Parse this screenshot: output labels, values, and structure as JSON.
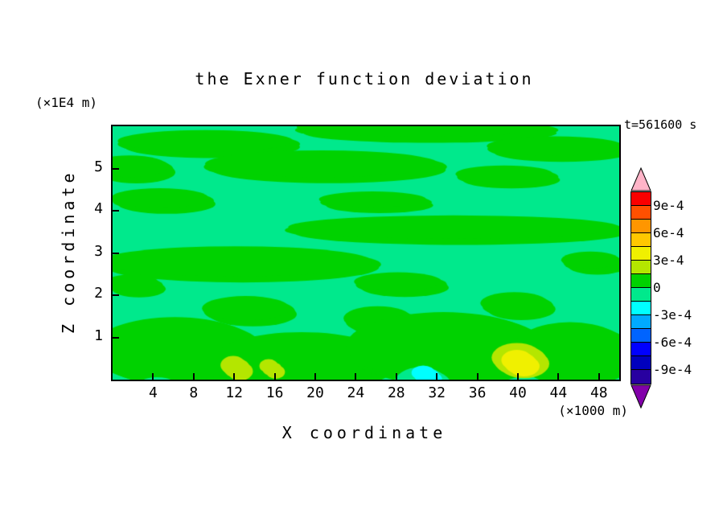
{
  "title": "the Exner function deviation",
  "annotations": {
    "time_label": "t=561600 s",
    "y_unit_label": "(×1E4 m)",
    "x_unit_label": "(×1000 m)"
  },
  "axes": {
    "x_label": "X coordinate",
    "y_label": "Z coordinate"
  },
  "chart_data": {
    "type": "heatmap",
    "title": "the Exner function deviation",
    "xlabel": "X coordinate",
    "ylabel": "Z coordinate",
    "x_unit": "×1000 m",
    "y_unit": "×1E4 m",
    "time_annotation": "t=561600 s",
    "xlim": [
      0,
      50
    ],
    "ylim": [
      0,
      6
    ],
    "x_ticks": [
      4,
      8,
      12,
      16,
      20,
      24,
      28,
      32,
      36,
      40,
      44,
      48
    ],
    "y_ticks": [
      1,
      2,
      3,
      4,
      5
    ],
    "grid": false,
    "legend_position": "right-colorbar",
    "contour_interval": 0.00015,
    "colorbar": {
      "labels_top_to_bottom": [
        "9e-4",
        "6e-4",
        "3e-4",
        "0",
        "-3e-4",
        "-6e-4",
        "-9e-4"
      ],
      "segment_colors_top_to_bottom": [
        "#fa0000",
        "#ff5000",
        "#ff9600",
        "#ffc800",
        "#f0f000",
        "#b4e600",
        "#00d200",
        "#00e98c",
        "#00ffff",
        "#00aaff",
        "#0064ff",
        "#0000ff",
        "#0000be",
        "#2800a0"
      ],
      "over_arrow_color": "#ffb4c8",
      "under_arrow_color": "#8200aa"
    },
    "levels": {
      "background": {
        "range": "-1.5e-4 to 0",
        "color": "#00e98c"
      },
      "green": {
        "range": "0 to 1.5e-4",
        "color": "#00d200"
      },
      "cyan": {
        "range": "-3e-4 to -1.5e-4",
        "color": "#00ffff"
      },
      "yellow_green": {
        "range": "1.5e-4 to 3e-4",
        "color": "#b4e600"
      },
      "yellow": {
        "range": "3e-4 to 4.5e-4",
        "color": "#f0f000"
      }
    },
    "background_level": "background",
    "field_regions": [
      {
        "level": "green",
        "cx": 0.19,
        "cy": 0.07,
        "rx": 0.18,
        "ry": 0.045
      },
      {
        "level": "green",
        "cx": 0.62,
        "cy": 0.015,
        "rx": 0.26,
        "ry": 0.04
      },
      {
        "level": "green",
        "cx": 0.88,
        "cy": 0.09,
        "rx": 0.14,
        "ry": 0.04
      },
      {
        "level": "green",
        "cx": 0.42,
        "cy": 0.16,
        "rx": 0.24,
        "ry": 0.055
      },
      {
        "level": "green",
        "cx": 0.04,
        "cy": 0.17,
        "rx": 0.08,
        "ry": 0.045
      },
      {
        "level": "green",
        "cx": 0.78,
        "cy": 0.2,
        "rx": 0.1,
        "ry": 0.035
      },
      {
        "level": "green",
        "cx": 0.1,
        "cy": 0.295,
        "rx": 0.1,
        "ry": 0.04
      },
      {
        "level": "green",
        "cx": 0.52,
        "cy": 0.3,
        "rx": 0.11,
        "ry": 0.032
      },
      {
        "level": "green",
        "cx": 0.68,
        "cy": 0.41,
        "rx": 0.34,
        "ry": 0.048
      },
      {
        "level": "green",
        "cx": 0.25,
        "cy": 0.545,
        "rx": 0.28,
        "ry": 0.062
      },
      {
        "level": "green",
        "cx": 0.57,
        "cy": 0.625,
        "rx": 0.09,
        "ry": 0.038
      },
      {
        "level": "green",
        "cx": 0.045,
        "cy": 0.63,
        "rx": 0.055,
        "ry": 0.035
      },
      {
        "level": "green",
        "cx": 0.95,
        "cy": 0.54,
        "rx": 0.06,
        "ry": 0.035
      },
      {
        "level": "green",
        "cx": 0.27,
        "cy": 0.73,
        "rx": 0.09,
        "ry": 0.05
      },
      {
        "level": "green",
        "cx": 0.53,
        "cy": 0.77,
        "rx": 0.07,
        "ry": 0.05
      },
      {
        "level": "green",
        "cx": 0.8,
        "cy": 0.71,
        "rx": 0.07,
        "ry": 0.045
      },
      {
        "level": "green",
        "cx": 0.13,
        "cy": 0.89,
        "rx": 0.17,
        "ry": 0.13
      },
      {
        "level": "green",
        "cx": 0.38,
        "cy": 0.93,
        "rx": 0.18,
        "ry": 0.11
      },
      {
        "level": "green",
        "cx": 0.66,
        "cy": 0.88,
        "rx": 0.2,
        "ry": 0.14
      },
      {
        "level": "green",
        "cx": 0.91,
        "cy": 0.9,
        "rx": 0.12,
        "ry": 0.12
      },
      {
        "level": "background",
        "cx": 0.615,
        "cy": 1.03,
        "rx": 0.055,
        "ry": 0.07
      },
      {
        "level": "background",
        "cx": 0.095,
        "cy": 1.06,
        "rx": 0.05,
        "ry": 0.06
      },
      {
        "level": "cyan",
        "cx": 0.62,
        "cy": 0.985,
        "rx": 0.024,
        "ry": 0.03
      },
      {
        "level": "yellow_green",
        "cx": 0.245,
        "cy": 0.955,
        "rx": 0.026,
        "ry": 0.038
      },
      {
        "level": "yellow_green",
        "cx": 0.315,
        "cy": 0.958,
        "rx": 0.019,
        "ry": 0.028
      },
      {
        "level": "yellow_green",
        "cx": 0.805,
        "cy": 0.925,
        "rx": 0.052,
        "ry": 0.06
      },
      {
        "level": "yellow",
        "cx": 0.805,
        "cy": 0.935,
        "rx": 0.032,
        "ry": 0.042
      }
    ]
  }
}
